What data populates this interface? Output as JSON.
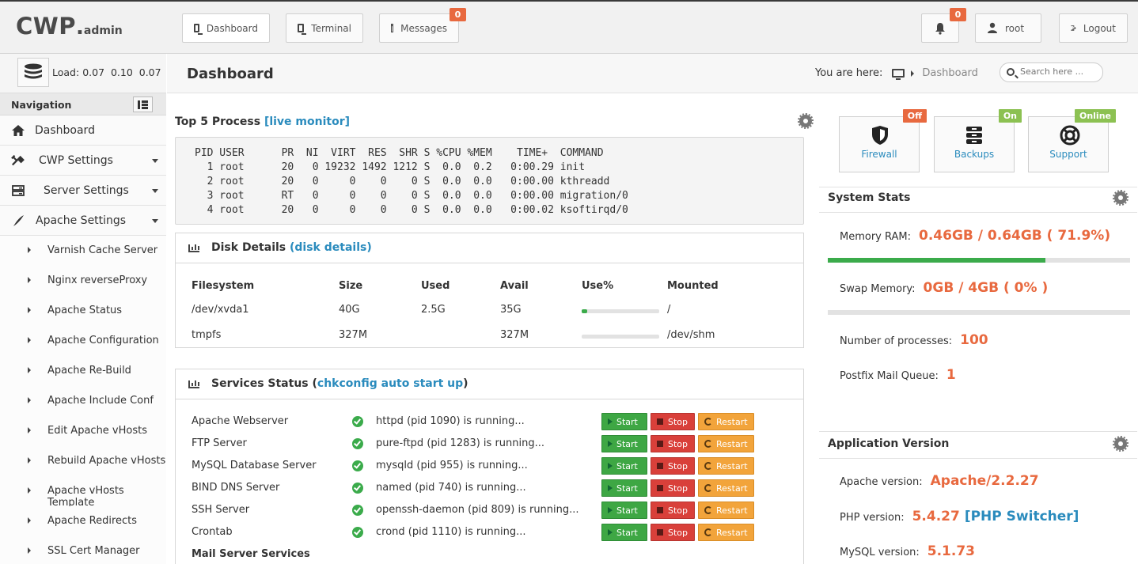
{
  "header": {
    "logo_main": "CWP",
    "logo_dot": ".",
    "logo_sub": "admin",
    "tabs": [
      {
        "label": "Dashboard"
      },
      {
        "label": "Terminal"
      },
      {
        "label": "Messages",
        "badge": "0"
      }
    ],
    "notifications_badge": "0",
    "user": "root",
    "logout": "Logout"
  },
  "sidebar": {
    "load_label": "Load:",
    "load_values": "0.07  0.10  0.07",
    "nav_title": "Navigation",
    "items": [
      {
        "label": "Dashboard"
      },
      {
        "label": "CWP Settings"
      },
      {
        "label": "Server Settings"
      },
      {
        "label": "Apache Settings"
      }
    ],
    "subitems": [
      "Varnish Cache Server",
      "Nginx reverseProxy",
      "Apache Status",
      "Apache Configuration",
      "Apache Re-Build",
      "Apache Include Conf",
      "Edit Apache vHosts",
      "Rebuild Apache vHosts",
      "Apache vHosts Template",
      "Apache Redirects",
      "SSL Cert Manager"
    ]
  },
  "page": {
    "title": "Dashboard",
    "breadcrumb_label": "You are here:",
    "breadcrumb_current": "Dashboard",
    "search_placeholder": "Search here ..."
  },
  "top_process": {
    "title": "Top 5 Process",
    "link": "[live monitor]",
    "output": "PID USER      PR  NI  VIRT  RES  SHR S %CPU %MEM    TIME+  COMMAND\n  1 root      20   0 19232 1492 1212 S  0.0  0.2   0:00.29 init\n  2 root      20   0     0    0    0 S  0.0  0.0   0:00.00 kthreadd\n  3 root      RT   0     0    0    0 S  0.0  0.0   0:00.00 migration/0\n  4 root      20   0     0    0    0 S  0.0  0.0   0:00.02 ksoftirqd/0"
  },
  "disk": {
    "title": "Disk Details",
    "link": "(disk details)",
    "headers": [
      "Filesystem",
      "Size",
      "Used",
      "Avail",
      "Use%",
      "Mounted"
    ],
    "rows": [
      {
        "filesystem": "/dev/xvda1",
        "size": "40G",
        "used": "2.5G",
        "avail": "35G",
        "use_pct": 7,
        "mounted": "/"
      },
      {
        "filesystem": "tmpfs",
        "size": "327M",
        "used": "",
        "avail": "327M",
        "use_pct": 0,
        "mounted": "/dev/shm"
      }
    ]
  },
  "services": {
    "title_prefix": "Services Status (",
    "link": "chkconfig auto start up",
    "title_suffix": ")",
    "start_label": "Start",
    "stop_label": "Stop",
    "restart_label": "Restart",
    "rows": [
      {
        "name": "Apache Webserver",
        "status": "httpd (pid 1090) is running..."
      },
      {
        "name": "FTP Server",
        "status": "pure-ftpd (pid 1283) is running..."
      },
      {
        "name": "MySQL Database Server",
        "status": "mysqld (pid 955) is running..."
      },
      {
        "name": "BIND DNS Server",
        "status": "named (pid 740) is running..."
      },
      {
        "name": "SSH Server",
        "status": "openssh-daemon (pid 809) is running..."
      },
      {
        "name": "Crontab",
        "status": "crond (pid 1110) is running..."
      }
    ],
    "mail_heading": "Mail Server Services"
  },
  "quick": [
    {
      "label": "Firewall",
      "tag": "Off"
    },
    {
      "label": "Backups",
      "tag": "On"
    },
    {
      "label": "Support",
      "tag": "Online"
    }
  ],
  "system_stats": {
    "title": "System Stats",
    "ram_label": "Memory RAM:",
    "ram_value": "0.46GB / 0.64GB ( 71.9%)",
    "ram_pct": 71.9,
    "swap_label": "Swap Memory:",
    "swap_value": "0GB / 4GB ( 0% )",
    "swap_pct": 0,
    "procs_label": "Number of processes:",
    "procs_value": "100",
    "mailq_label": "Postfix Mail Queue:",
    "mailq_value": "1"
  },
  "app_version": {
    "title": "Application Version",
    "apache_label": "Apache version:",
    "apache_value": "Apache/2.2.27",
    "php_label": "PHP version:",
    "php_value": "5.4.27",
    "php_link": "[PHP Switcher]",
    "mysql_label": "MySQL version:",
    "mysql_value": "5.1.73"
  },
  "colors": {
    "accent_orange": "#e8693f",
    "link_blue": "#2a8bbd",
    "ok_green": "#3bab4b"
  }
}
